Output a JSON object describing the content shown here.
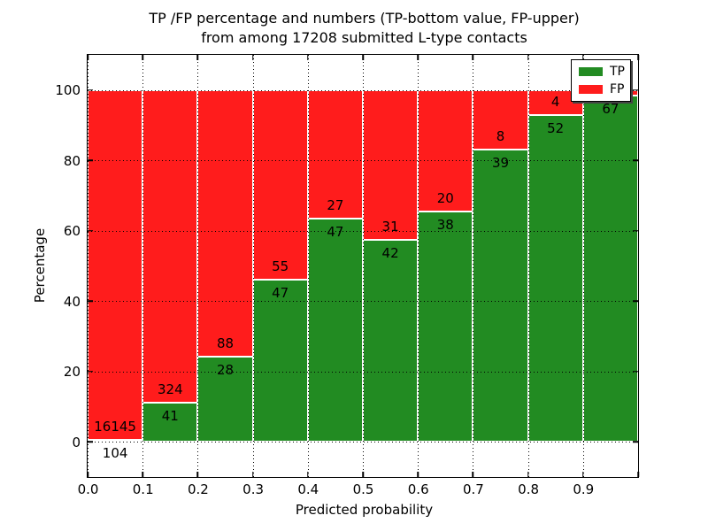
{
  "chart_data": {
    "type": "bar",
    "stacked": true,
    "title_line1": "TP /FP percentage and numbers (TP-bottom value, FP-upper)",
    "title_line2": "from among 17208 submitted L-type contacts",
    "xlabel": "Predicted probability",
    "ylabel": "Percentage",
    "total_contacts": 17208,
    "xlim": [
      0.0,
      1.0
    ],
    "ylim": [
      -10,
      110
    ],
    "bin_width": 0.1,
    "x_tick_labels": [
      "0.0",
      "0.1",
      "0.2",
      "0.3",
      "0.4",
      "0.5",
      "0.6",
      "0.7",
      "0.8",
      "0.9"
    ],
    "y_tick_values": [
      0,
      20,
      40,
      60,
      80,
      100
    ],
    "grid": {
      "show": true,
      "style": "dotted",
      "color": "#000000",
      "axisbelow": false
    },
    "series": [
      {
        "name": "TP",
        "color": "#228b22"
      },
      {
        "name": "FP",
        "color": "#ff1c1c"
      }
    ],
    "legend": {
      "position": "upper right",
      "entries": [
        "TP",
        "FP"
      ]
    },
    "bins": [
      {
        "x0": 0.0,
        "x1": 0.1,
        "tp": 104,
        "fp": 16145
      },
      {
        "x0": 0.1,
        "x1": 0.2,
        "tp": 41,
        "fp": 324
      },
      {
        "x0": 0.2,
        "x1": 0.3,
        "tp": 28,
        "fp": 88
      },
      {
        "x0": 0.3,
        "x1": 0.4,
        "tp": 47,
        "fp": 55
      },
      {
        "x0": 0.4,
        "x1": 0.5,
        "tp": 47,
        "fp": 27
      },
      {
        "x0": 0.5,
        "x1": 0.6,
        "tp": 42,
        "fp": 31
      },
      {
        "x0": 0.6,
        "x1": 0.7,
        "tp": 38,
        "fp": 20
      },
      {
        "x0": 0.7,
        "x1": 0.8,
        "tp": 39,
        "fp": 8
      },
      {
        "x0": 0.8,
        "x1": 0.9,
        "tp": 52,
        "fp": 4
      },
      {
        "x0": 0.9,
        "x1": 1.0,
        "tp": 67,
        "fp": 1
      }
    ]
  }
}
